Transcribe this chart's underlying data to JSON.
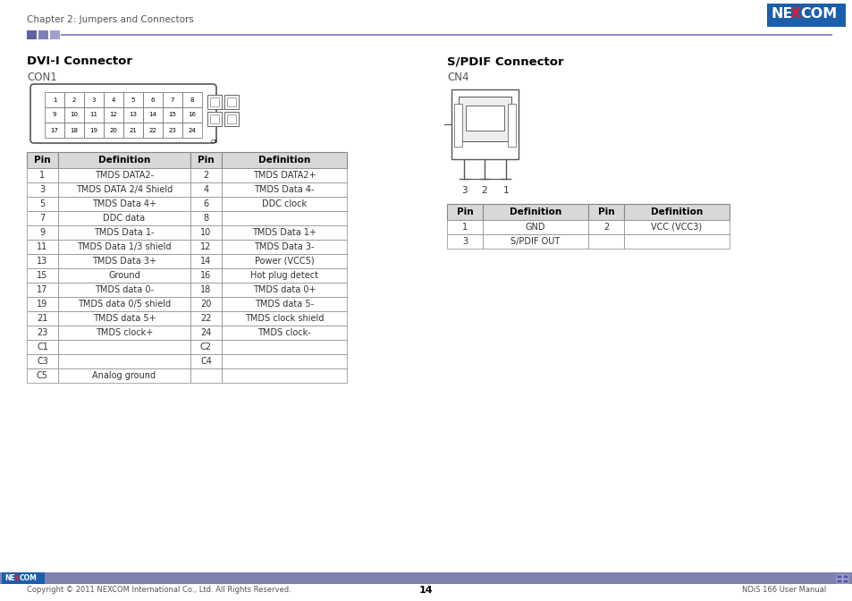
{
  "page_title": "Chapter 2: Jumpers and Connectors",
  "page_number": "14",
  "footer_left": "Copyright © 2011 NEXCOM International Co., Ltd. All Rights Reserved.",
  "footer_right": "NDiS 166 User Manual",
  "dvi_title": "DVI-I Connector",
  "dvi_sub": "CON1",
  "spdif_title": "S/PDIF Connector",
  "spdif_sub": "CN4",
  "dvi_table_headers": [
    "Pin",
    "Definition",
    "Pin",
    "Definition"
  ],
  "dvi_table_rows": [
    [
      "1",
      "TMDS DATA2-",
      "2",
      "TMDS DATA2+"
    ],
    [
      "3",
      "TMDS DATA 2/4 Shield",
      "4",
      "TMDS Data 4-"
    ],
    [
      "5",
      "TMDS Data 4+",
      "6",
      "DDC clock"
    ],
    [
      "7",
      "DDC data",
      "8",
      ""
    ],
    [
      "9",
      "TMDS Data 1-",
      "10",
      "TMDS Data 1+"
    ],
    [
      "11",
      "TMDS Data 1/3 shield",
      "12",
      "TMDS Data 3-"
    ],
    [
      "13",
      "TMDS Data 3+",
      "14",
      "Power (VCC5)"
    ],
    [
      "15",
      "Ground",
      "16",
      "Hot plug detect"
    ],
    [
      "17",
      "TMDS data 0-",
      "18",
      "TMDS data 0+"
    ],
    [
      "19",
      "TMDS data 0/5 shield",
      "20",
      "TMDS data 5-"
    ],
    [
      "21",
      "TMDS data 5+",
      "22",
      "TMDS clock shield"
    ],
    [
      "23",
      "TMDS clock+",
      "24",
      "TMDS clock-"
    ],
    [
      "C1",
      "",
      "C2",
      ""
    ],
    [
      "C3",
      "",
      "C4",
      ""
    ],
    [
      "C5",
      "Analog ground",
      "",
      ""
    ]
  ],
  "spdif_table_headers": [
    "Pin",
    "Definition",
    "Pin",
    "Definition"
  ],
  "spdif_table_rows": [
    [
      "1",
      "GND",
      "2",
      "VCC (VCC3)"
    ],
    [
      "3",
      "S/PDIF OUT",
      "",
      ""
    ]
  ],
  "table_header_bg": "#D8D8D8",
  "table_border_color": "#888888",
  "nexcom_blue": "#1B5EAB",
  "nexcom_red": "#E31E24",
  "footer_bar_color": "#8080B0",
  "accent_sq_colors": [
    "#6060A0",
    "#8080B8",
    "#A0A0CC"
  ],
  "accent_line_color": "#9090C0",
  "bg_color": "#FFFFFF"
}
